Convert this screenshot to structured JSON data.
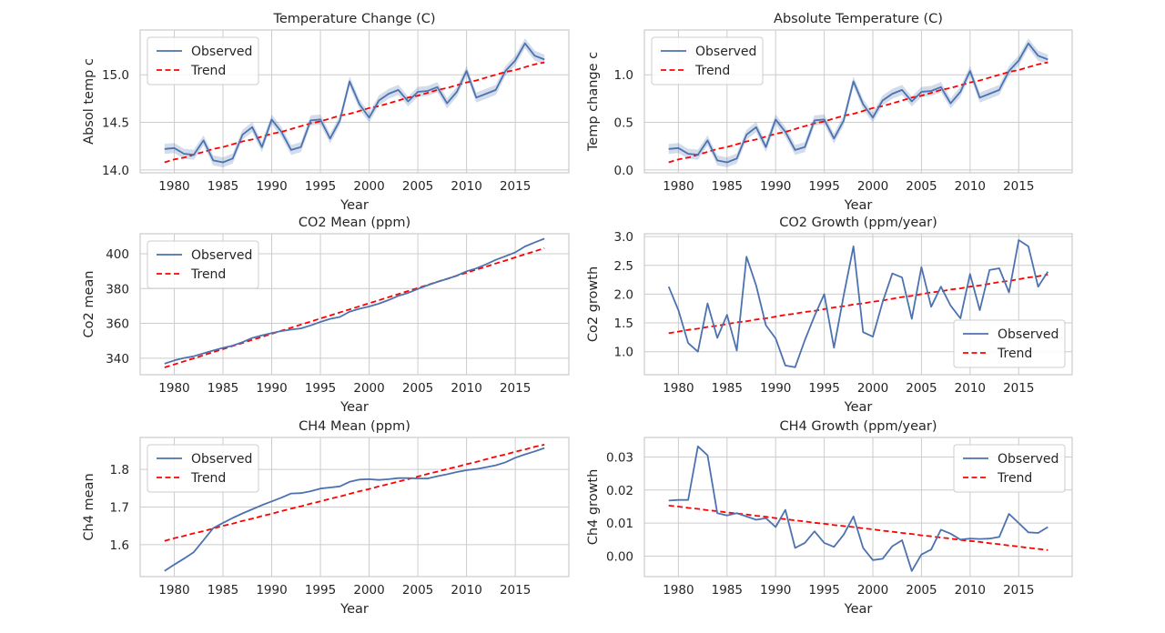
{
  "chart_data": [
    {
      "type": "line",
      "title": "Temperature Change (C)",
      "xlabel": "Year",
      "ylabel": "Absol temp c",
      "xlim": [
        1976.5,
        2020.5
      ],
      "ylim": [
        13.97,
        15.47
      ],
      "xticks": [
        1980,
        1985,
        1990,
        1995,
        2000,
        2005,
        2010,
        2015
      ],
      "yticks": [
        14.0,
        14.5,
        15.0
      ],
      "ytick_labels": [
        "14.0",
        "14.5",
        "15.0"
      ],
      "legend_position": "top-left",
      "band": true,
      "x": [
        1979,
        1980,
        1981,
        1982,
        1983,
        1984,
        1985,
        1986,
        1987,
        1988,
        1989,
        1990,
        1991,
        1992,
        1993,
        1994,
        1995,
        1996,
        1997,
        1998,
        1999,
        2000,
        2001,
        2002,
        2003,
        2004,
        2005,
        2006,
        2007,
        2008,
        2009,
        2010,
        2011,
        2012,
        2013,
        2014,
        2015,
        2016,
        2017,
        2018
      ],
      "series": [
        {
          "name": "Observed",
          "color": "#4c72b0",
          "style": "solid",
          "values": [
            14.22,
            14.23,
            14.17,
            14.16,
            14.31,
            14.1,
            14.08,
            14.12,
            14.37,
            14.45,
            14.24,
            14.53,
            14.4,
            14.21,
            14.24,
            14.52,
            14.53,
            14.33,
            14.52,
            14.93,
            14.69,
            14.55,
            14.73,
            14.8,
            14.84,
            14.72,
            14.82,
            14.83,
            14.87,
            14.7,
            14.82,
            15.04,
            14.76,
            14.8,
            14.84,
            15.04,
            15.15,
            15.33,
            15.2,
            15.16
          ]
        },
        {
          "name": "Trend",
          "color": "#ff0000",
          "style": "dashed",
          "values": [
            14.08,
            14.11,
            14.13,
            14.16,
            14.19,
            14.22,
            14.24,
            14.27,
            14.3,
            14.32,
            14.35,
            14.38,
            14.4,
            14.43,
            14.46,
            14.49,
            14.51,
            14.54,
            14.57,
            14.59,
            14.62,
            14.65,
            14.67,
            14.7,
            14.73,
            14.76,
            14.78,
            14.81,
            14.84,
            14.86,
            14.89,
            14.92,
            14.94,
            14.97,
            15.0,
            15.03,
            15.05,
            15.08,
            15.11,
            15.13
          ]
        }
      ]
    },
    {
      "type": "line",
      "title": "Absolute Temperature (C)",
      "xlabel": "Year",
      "ylabel": "Temp change c",
      "xlim": [
        1976.5,
        2020.5
      ],
      "ylim": [
        -0.03,
        1.47
      ],
      "xticks": [
        1980,
        1985,
        1990,
        1995,
        2000,
        2005,
        2010,
        2015
      ],
      "yticks": [
        0.0,
        0.5,
        1.0
      ],
      "ytick_labels": [
        "0.0",
        "0.5",
        "1.0"
      ],
      "legend_position": "top-left",
      "band": true,
      "x": [
        1979,
        1980,
        1981,
        1982,
        1983,
        1984,
        1985,
        1986,
        1987,
        1988,
        1989,
        1990,
        1991,
        1992,
        1993,
        1994,
        1995,
        1996,
        1997,
        1998,
        1999,
        2000,
        2001,
        2002,
        2003,
        2004,
        2005,
        2006,
        2007,
        2008,
        2009,
        2010,
        2011,
        2012,
        2013,
        2014,
        2015,
        2016,
        2017,
        2018
      ],
      "series": [
        {
          "name": "Observed",
          "color": "#4c72b0",
          "style": "solid",
          "values": [
            0.22,
            0.23,
            0.17,
            0.16,
            0.31,
            0.1,
            0.08,
            0.12,
            0.37,
            0.45,
            0.24,
            0.53,
            0.4,
            0.21,
            0.24,
            0.52,
            0.53,
            0.33,
            0.52,
            0.93,
            0.69,
            0.55,
            0.73,
            0.8,
            0.84,
            0.72,
            0.82,
            0.83,
            0.87,
            0.7,
            0.82,
            1.04,
            0.76,
            0.8,
            0.84,
            1.04,
            1.15,
            1.33,
            1.2,
            1.16
          ]
        },
        {
          "name": "Trend",
          "color": "#ff0000",
          "style": "dashed",
          "values": [
            0.08,
            0.11,
            0.13,
            0.16,
            0.19,
            0.22,
            0.24,
            0.27,
            0.3,
            0.32,
            0.35,
            0.38,
            0.4,
            0.43,
            0.46,
            0.49,
            0.51,
            0.54,
            0.57,
            0.59,
            0.62,
            0.65,
            0.67,
            0.7,
            0.73,
            0.76,
            0.78,
            0.81,
            0.84,
            0.86,
            0.89,
            0.92,
            0.94,
            0.97,
            1.0,
            1.03,
            1.05,
            1.08,
            1.11,
            1.13
          ]
        }
      ]
    },
    {
      "type": "line",
      "title": "CO2 Mean (ppm)",
      "xlabel": "Year",
      "ylabel": "Co2 mean",
      "xlim": [
        1976.5,
        2020.5
      ],
      "ylim": [
        330.5,
        411.5
      ],
      "xticks": [
        1980,
        1985,
        1990,
        1995,
        2000,
        2005,
        2010,
        2015
      ],
      "yticks": [
        340,
        360,
        380,
        400
      ],
      "ytick_labels": [
        "340",
        "360",
        "380",
        "400"
      ],
      "legend_position": "top-left",
      "band": false,
      "x": [
        1979,
        1980,
        1981,
        1982,
        1983,
        1984,
        1985,
        1986,
        1987,
        1988,
        1989,
        1990,
        1991,
        1992,
        1993,
        1994,
        1995,
        1996,
        1997,
        1998,
        1999,
        2000,
        2001,
        2002,
        2003,
        2004,
        2005,
        2006,
        2007,
        2008,
        2009,
        2010,
        2011,
        2012,
        2013,
        2014,
        2015,
        2016,
        2017,
        2018
      ],
      "series": [
        {
          "name": "Observed",
          "color": "#4c72b0",
          "style": "solid",
          "values": [
            336.8,
            338.7,
            340.1,
            341.1,
            342.8,
            344.4,
            345.9,
            347.2,
            349.2,
            351.6,
            353.1,
            354.4,
            355.6,
            356.4,
            357.1,
            358.8,
            360.8,
            362.6,
            363.7,
            366.7,
            368.4,
            369.7,
            371.3,
            373.4,
            375.8,
            377.5,
            379.8,
            381.9,
            383.8,
            385.6,
            387.4,
            389.9,
            391.6,
            393.9,
            396.5,
            398.6,
            400.8,
            404.2,
            406.5,
            408.7
          ]
        },
        {
          "name": "Trend",
          "color": "#ff0000",
          "style": "dashed",
          "values": [
            334.7,
            336.4,
            338.2,
            339.9,
            341.7,
            343.5,
            345.2,
            347.0,
            348.7,
            350.5,
            352.2,
            354.0,
            355.8,
            357.5,
            359.3,
            361.0,
            362.8,
            364.5,
            366.3,
            368.0,
            369.8,
            371.6,
            373.3,
            375.1,
            376.8,
            378.6,
            380.3,
            382.1,
            383.9,
            385.6,
            387.4,
            389.1,
            390.9,
            392.6,
            394.4,
            396.1,
            397.9,
            399.7,
            401.4,
            403.2
          ]
        }
      ]
    },
    {
      "type": "line",
      "title": "CO2 Growth (ppm/year)",
      "xlabel": "Year",
      "ylabel": "Co2 growth",
      "xlim": [
        1976.5,
        2020.5
      ],
      "ylim": [
        0.6,
        3.05
      ],
      "xticks": [
        1980,
        1985,
        1990,
        1995,
        2000,
        2005,
        2010,
        2015
      ],
      "yticks": [
        1.0,
        1.5,
        2.0,
        2.5,
        3.0
      ],
      "ytick_labels": [
        "1.0",
        "1.5",
        "2.0",
        "2.5",
        "3.0"
      ],
      "legend_position": "bottom-right",
      "band": false,
      "x": [
        1979,
        1980,
        1981,
        1982,
        1983,
        1984,
        1985,
        1986,
        1987,
        1988,
        1989,
        1990,
        1991,
        1992,
        1993,
        1994,
        1995,
        1996,
        1997,
        1998,
        1999,
        2000,
        2001,
        2002,
        2003,
        2004,
        2005,
        2006,
        2007,
        2008,
        2009,
        2010,
        2011,
        2012,
        2013,
        2014,
        2015,
        2016,
        2017,
        2018
      ],
      "series": [
        {
          "name": "Observed",
          "color": "#4c72b0",
          "style": "solid",
          "values": [
            2.13,
            1.72,
            1.15,
            1.0,
            1.84,
            1.24,
            1.64,
            1.02,
            2.65,
            2.15,
            1.46,
            1.23,
            0.76,
            0.73,
            1.2,
            1.62,
            2.0,
            1.07,
            1.98,
            2.83,
            1.34,
            1.26,
            1.86,
            2.36,
            2.29,
            1.57,
            2.47,
            1.78,
            2.13,
            1.8,
            1.58,
            2.35,
            1.72,
            2.42,
            2.45,
            2.03,
            2.94,
            2.83,
            2.13,
            2.39
          ]
        },
        {
          "name": "Trend",
          "color": "#ff0000",
          "style": "dashed",
          "values": [
            1.32,
            1.35,
            1.38,
            1.4,
            1.43,
            1.45,
            1.48,
            1.51,
            1.53,
            1.56,
            1.58,
            1.61,
            1.64,
            1.66,
            1.69,
            1.71,
            1.74,
            1.77,
            1.79,
            1.82,
            1.84,
            1.87,
            1.89,
            1.92,
            1.95,
            1.97,
            2.0,
            2.03,
            2.05,
            2.08,
            2.1,
            2.13,
            2.15,
            2.18,
            2.21,
            2.23,
            2.26,
            2.29,
            2.31,
            2.34
          ]
        }
      ]
    },
    {
      "type": "line",
      "title": "CH4 Mean (ppm)",
      "xlabel": "Year",
      "ylabel": "Ch4 mean",
      "xlim": [
        1976.5,
        2020.5
      ],
      "ylim": [
        1.515,
        1.885
      ],
      "xticks": [
        1980,
        1985,
        1990,
        1995,
        2000,
        2005,
        2010,
        2015
      ],
      "yticks": [
        1.6,
        1.7,
        1.8
      ],
      "ytick_labels": [
        "1.6",
        "1.7",
        "1.8"
      ],
      "legend_position": "top-left",
      "band": false,
      "x": [
        1979,
        1980,
        1981,
        1982,
        1983,
        1984,
        1985,
        1986,
        1987,
        1988,
        1989,
        1990,
        1991,
        1992,
        1993,
        1994,
        1995,
        1996,
        1997,
        1998,
        1999,
        2000,
        2001,
        2002,
        2003,
        2004,
        2005,
        2006,
        2007,
        2008,
        2009,
        2010,
        2011,
        2012,
        2013,
        2014,
        2015,
        2016,
        2017,
        2018
      ],
      "series": [
        {
          "name": "Observed",
          "color": "#4c72b0",
          "style": "solid",
          "values": [
            1.53,
            1.547,
            1.563,
            1.58,
            1.612,
            1.644,
            1.658,
            1.671,
            1.683,
            1.694,
            1.705,
            1.715,
            1.725,
            1.736,
            1.737,
            1.742,
            1.749,
            1.752,
            1.755,
            1.767,
            1.773,
            1.774,
            1.772,
            1.774,
            1.777,
            1.777,
            1.776,
            1.776,
            1.782,
            1.787,
            1.793,
            1.798,
            1.801,
            1.806,
            1.811,
            1.819,
            1.831,
            1.84,
            1.848,
            1.857
          ]
        },
        {
          "name": "Trend",
          "color": "#ff0000",
          "style": "dashed",
          "values": [
            1.61,
            1.617,
            1.623,
            1.63,
            1.636,
            1.643,
            1.65,
            1.656,
            1.663,
            1.669,
            1.676,
            1.682,
            1.689,
            1.696,
            1.702,
            1.709,
            1.715,
            1.722,
            1.728,
            1.735,
            1.742,
            1.748,
            1.755,
            1.761,
            1.768,
            1.774,
            1.781,
            1.788,
            1.794,
            1.801,
            1.807,
            1.814,
            1.82,
            1.827,
            1.834,
            1.84,
            1.847,
            1.853,
            1.86,
            1.866
          ]
        }
      ]
    },
    {
      "type": "line",
      "title": "CH4 Growth (ppm/year)",
      "xlabel": "Year",
      "ylabel": "Ch4 growth",
      "xlim": [
        1976.5,
        2020.5
      ],
      "ylim": [
        -0.0062,
        0.0359
      ],
      "xticks": [
        1980,
        1985,
        1990,
        1995,
        2000,
        2005,
        2010,
        2015
      ],
      "yticks": [
        0.0,
        0.01,
        0.02,
        0.03
      ],
      "ytick_labels": [
        "0.00",
        "0.01",
        "0.02",
        "0.03"
      ],
      "legend_position": "top-right",
      "band": false,
      "x": [
        1979,
        1980,
        1981,
        1982,
        1983,
        1984,
        1985,
        1986,
        1987,
        1988,
        1989,
        1990,
        1991,
        1992,
        1993,
        1994,
        1995,
        1996,
        1997,
        1998,
        1999,
        2000,
        2001,
        2002,
        2003,
        2004,
        2005,
        2006,
        2007,
        2008,
        2009,
        2010,
        2011,
        2012,
        2013,
        2014,
        2015,
        2016,
        2017,
        2018
      ],
      "series": [
        {
          "name": "Observed",
          "color": "#4c72b0",
          "style": "solid",
          "values": [
            0.0168,
            0.017,
            0.017,
            0.0332,
            0.0305,
            0.013,
            0.0123,
            0.013,
            0.012,
            0.011,
            0.0115,
            0.0088,
            0.014,
            0.0025,
            0.004,
            0.0075,
            0.004,
            0.0028,
            0.0065,
            0.012,
            0.0025,
            -0.0012,
            -0.0008,
            0.003,
            0.0048,
            -0.0045,
            0.0005,
            0.002,
            0.008,
            0.0068,
            0.005,
            0.0053,
            0.0052,
            0.0053,
            0.0058,
            0.0128,
            0.01,
            0.0072,
            0.007,
            0.0088
          ]
        },
        {
          "name": "Trend",
          "color": "#ff0000",
          "style": "dashed",
          "values": [
            0.0153,
            0.015,
            0.0146,
            0.0143,
            0.0139,
            0.0136,
            0.0132,
            0.0129,
            0.0126,
            0.0122,
            0.0119,
            0.0115,
            0.0112,
            0.0108,
            0.0105,
            0.0101,
            0.0098,
            0.0094,
            0.0091,
            0.0088,
            0.0084,
            0.0081,
            0.0077,
            0.0074,
            0.007,
            0.0067,
            0.0063,
            0.006,
            0.0056,
            0.0053,
            0.0049,
            0.0046,
            0.0043,
            0.0039,
            0.0036,
            0.0032,
            0.0029,
            0.0025,
            0.0022,
            0.0018
          ]
        }
      ]
    }
  ]
}
